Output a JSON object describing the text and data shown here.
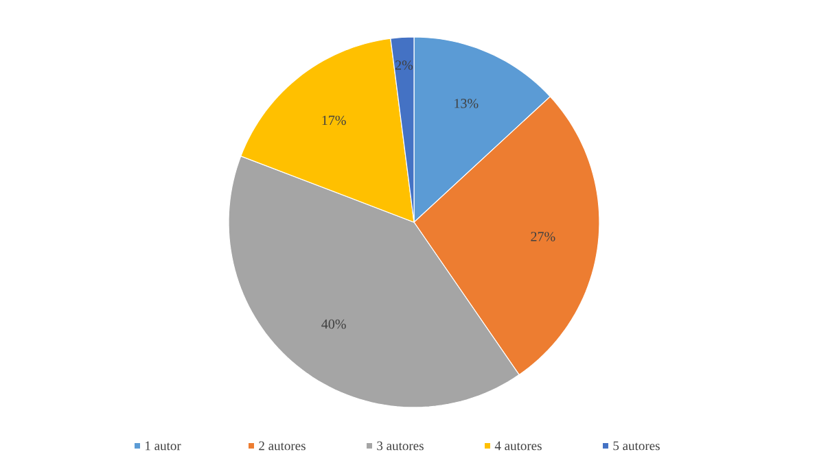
{
  "chart_data": {
    "type": "pie",
    "categories": [
      "1 autor",
      "2 autores",
      "3 autores",
      "4 autores",
      "5 autores"
    ],
    "values": [
      13,
      27,
      40,
      17,
      2
    ],
    "colors": [
      "#5b9bd5",
      "#ed7d31",
      "#a5a5a5",
      "#ffc000",
      "#4472c4"
    ],
    "value_labels": [
      "13%",
      "27%",
      "40%",
      "17%",
      "2%"
    ],
    "legend": "bottom"
  }
}
